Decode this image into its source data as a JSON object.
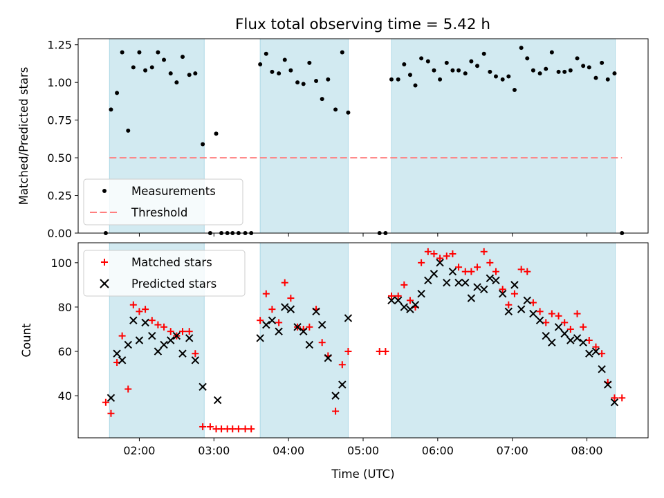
{
  "title": "Flux total observing time = 5.42 h",
  "chart_data": [
    {
      "type": "scatter",
      "ylabel": "Matched/Predicted stars",
      "xlabel": "",
      "xlim": [
        1.18,
        8.82
      ],
      "ylim": [
        0,
        1.29
      ],
      "yticks": [
        0,
        0.25,
        0.5,
        0.75,
        1.0,
        1.25
      ],
      "ytick_labels": [
        "0.00",
        "0.25",
        "0.50",
        "0.75",
        "1.00",
        "1.25"
      ],
      "shaded_intervals": [
        [
          1.6,
          2.87
        ],
        [
          3.62,
          4.8
        ],
        [
          5.38,
          8.38
        ]
      ],
      "threshold": {
        "name": "Threshold",
        "value": 0.5,
        "x_range": [
          1.6,
          8.47
        ],
        "color": "#ff7f7f"
      },
      "series": [
        {
          "name": "Measurements",
          "marker": "dot",
          "color": "#000000",
          "points": [
            [
              1.55,
              0.0
            ],
            [
              1.62,
              0.82
            ],
            [
              1.7,
              0.93
            ],
            [
              1.77,
              1.2
            ],
            [
              1.85,
              0.68
            ],
            [
              1.92,
              1.1
            ],
            [
              2.0,
              1.2
            ],
            [
              2.08,
              1.08
            ],
            [
              2.17,
              1.1
            ],
            [
              2.25,
              1.2
            ],
            [
              2.33,
              1.15
            ],
            [
              2.42,
              1.06
            ],
            [
              2.5,
              1.0
            ],
            [
              2.58,
              1.17
            ],
            [
              2.67,
              1.05
            ],
            [
              2.75,
              1.06
            ],
            [
              2.85,
              0.59
            ],
            [
              2.95,
              0.0
            ],
            [
              3.03,
              0.66
            ],
            [
              3.1,
              0.0
            ],
            [
              3.18,
              0.0
            ],
            [
              3.25,
              0.0
            ],
            [
              3.33,
              0.0
            ],
            [
              3.42,
              0.0
            ],
            [
              3.5,
              0.0
            ],
            [
              3.62,
              1.12
            ],
            [
              3.7,
              1.19
            ],
            [
              3.78,
              1.07
            ],
            [
              3.87,
              1.06
            ],
            [
              3.95,
              1.15
            ],
            [
              4.03,
              1.08
            ],
            [
              4.12,
              1.0
            ],
            [
              4.2,
              0.99
            ],
            [
              4.28,
              1.13
            ],
            [
              4.37,
              1.01
            ],
            [
              4.45,
              0.89
            ],
            [
              4.53,
              1.02
            ],
            [
              4.63,
              0.82
            ],
            [
              4.72,
              1.2
            ],
            [
              4.8,
              0.8
            ],
            [
              5.22,
              0.0
            ],
            [
              5.3,
              0.0
            ],
            [
              5.38,
              1.02
            ],
            [
              5.47,
              1.02
            ],
            [
              5.55,
              1.12
            ],
            [
              5.63,
              1.05
            ],
            [
              5.7,
              0.98
            ],
            [
              5.78,
              1.16
            ],
            [
              5.87,
              1.14
            ],
            [
              5.95,
              1.08
            ],
            [
              6.03,
              1.02
            ],
            [
              6.12,
              1.13
            ],
            [
              6.2,
              1.08
            ],
            [
              6.28,
              1.08
            ],
            [
              6.37,
              1.06
            ],
            [
              6.45,
              1.14
            ],
            [
              6.53,
              1.11
            ],
            [
              6.62,
              1.19
            ],
            [
              6.7,
              1.07
            ],
            [
              6.78,
              1.04
            ],
            [
              6.87,
              1.02
            ],
            [
              6.95,
              1.04
            ],
            [
              7.03,
              0.95
            ],
            [
              7.12,
              1.23
            ],
            [
              7.2,
              1.16
            ],
            [
              7.28,
              1.08
            ],
            [
              7.37,
              1.06
            ],
            [
              7.45,
              1.09
            ],
            [
              7.53,
              1.2
            ],
            [
              7.62,
              1.07
            ],
            [
              7.7,
              1.07
            ],
            [
              7.78,
              1.08
            ],
            [
              7.87,
              1.16
            ],
            [
              7.95,
              1.11
            ],
            [
              8.03,
              1.1
            ],
            [
              8.12,
              1.03
            ],
            [
              8.2,
              1.13
            ],
            [
              8.28,
              1.02
            ],
            [
              8.37,
              1.06
            ],
            [
              8.47,
              0.0
            ]
          ]
        }
      ],
      "legend": {
        "placement": "lower-left",
        "entries": [
          "Measurements",
          "Threshold"
        ]
      }
    },
    {
      "type": "scatter",
      "ylabel": "Count",
      "xlabel": "Time (UTC)",
      "xlim": [
        1.18,
        8.82
      ],
      "ylim": [
        21,
        109
      ],
      "yticks": [
        40,
        60,
        80,
        100
      ],
      "ytick_labels": [
        "40",
        "60",
        "80",
        "100"
      ],
      "xticks": [
        2,
        3,
        4,
        5,
        6,
        7,
        8
      ],
      "xtick_labels": [
        "02:00",
        "03:00",
        "04:00",
        "05:00",
        "06:00",
        "07:00",
        "08:00"
      ],
      "shaded_intervals": [
        [
          1.6,
          2.87
        ],
        [
          3.62,
          4.8
        ],
        [
          5.38,
          8.38
        ]
      ],
      "series": [
        {
          "name": "Matched stars",
          "marker": "plus",
          "color": "#ff0000",
          "points": [
            [
              1.55,
              37
            ],
            [
              1.62,
              32
            ],
            [
              1.7,
              55
            ],
            [
              1.77,
              67
            ],
            [
              1.85,
              43
            ],
            [
              1.92,
              81
            ],
            [
              2.0,
              78
            ],
            [
              2.08,
              79
            ],
            [
              2.17,
              74
            ],
            [
              2.25,
              72
            ],
            [
              2.33,
              71
            ],
            [
              2.42,
              69
            ],
            [
              2.5,
              67
            ],
            [
              2.58,
              69
            ],
            [
              2.67,
              69
            ],
            [
              2.75,
              59
            ],
            [
              2.85,
              26
            ],
            [
              2.95,
              26
            ],
            [
              3.03,
              25
            ],
            [
              3.1,
              25
            ],
            [
              3.18,
              25
            ],
            [
              3.25,
              25
            ],
            [
              3.33,
              25
            ],
            [
              3.42,
              25
            ],
            [
              3.5,
              25
            ],
            [
              3.62,
              74
            ],
            [
              3.7,
              86
            ],
            [
              3.78,
              79
            ],
            [
              3.87,
              73
            ],
            [
              3.95,
              91
            ],
            [
              4.03,
              84
            ],
            [
              4.12,
              71
            ],
            [
              4.2,
              70
            ],
            [
              4.28,
              71
            ],
            [
              4.37,
              79
            ],
            [
              4.45,
              64
            ],
            [
              4.53,
              58
            ],
            [
              4.63,
              33
            ],
            [
              4.72,
              54
            ],
            [
              4.8,
              60
            ],
            [
              5.22,
              60
            ],
            [
              5.3,
              60
            ],
            [
              5.38,
              85
            ],
            [
              5.47,
              85
            ],
            [
              5.55,
              90
            ],
            [
              5.63,
              83
            ],
            [
              5.7,
              80
            ],
            [
              5.78,
              100
            ],
            [
              5.87,
              105
            ],
            [
              5.95,
              104
            ],
            [
              6.03,
              102
            ],
            [
              6.12,
              103
            ],
            [
              6.2,
              104
            ],
            [
              6.28,
              98
            ],
            [
              6.37,
              96
            ],
            [
              6.45,
              96
            ],
            [
              6.53,
              98
            ],
            [
              6.62,
              105
            ],
            [
              6.7,
              100
            ],
            [
              6.78,
              96
            ],
            [
              6.87,
              88
            ],
            [
              6.95,
              81
            ],
            [
              7.03,
              86
            ],
            [
              7.12,
              97
            ],
            [
              7.2,
              96
            ],
            [
              7.28,
              82
            ],
            [
              7.37,
              78
            ],
            [
              7.45,
              73
            ],
            [
              7.53,
              77
            ],
            [
              7.62,
              76
            ],
            [
              7.7,
              73
            ],
            [
              7.78,
              70
            ],
            [
              7.87,
              77
            ],
            [
              7.95,
              71
            ],
            [
              8.03,
              65
            ],
            [
              8.12,
              62
            ],
            [
              8.2,
              59
            ],
            [
              8.28,
              46
            ],
            [
              8.37,
              39
            ],
            [
              8.47,
              39
            ]
          ]
        },
        {
          "name": "Predicted stars",
          "marker": "x",
          "color": "#000000",
          "points": [
            [
              1.62,
              39
            ],
            [
              1.7,
              59
            ],
            [
              1.77,
              56
            ],
            [
              1.85,
              63
            ],
            [
              1.92,
              74
            ],
            [
              2.0,
              65
            ],
            [
              2.08,
              73
            ],
            [
              2.17,
              67
            ],
            [
              2.25,
              60
            ],
            [
              2.33,
              63
            ],
            [
              2.42,
              65
            ],
            [
              2.5,
              67
            ],
            [
              2.58,
              59
            ],
            [
              2.67,
              66
            ],
            [
              2.75,
              56
            ],
            [
              2.85,
              44
            ],
            [
              3.05,
              38
            ],
            [
              3.62,
              66
            ],
            [
              3.7,
              72
            ],
            [
              3.78,
              74
            ],
            [
              3.87,
              69
            ],
            [
              3.95,
              80
            ],
            [
              4.03,
              79
            ],
            [
              4.12,
              71
            ],
            [
              4.2,
              69
            ],
            [
              4.28,
              63
            ],
            [
              4.37,
              78
            ],
            [
              4.45,
              72
            ],
            [
              4.53,
              57
            ],
            [
              4.63,
              40
            ],
            [
              4.72,
              45
            ],
            [
              4.8,
              75
            ],
            [
              5.38,
              83
            ],
            [
              5.47,
              83
            ],
            [
              5.55,
              80
            ],
            [
              5.63,
              79
            ],
            [
              5.7,
              81
            ],
            [
              5.78,
              86
            ],
            [
              5.87,
              92
            ],
            [
              5.95,
              95
            ],
            [
              6.03,
              100
            ],
            [
              6.12,
              91
            ],
            [
              6.2,
              96
            ],
            [
              6.28,
              91
            ],
            [
              6.37,
              91
            ],
            [
              6.45,
              84
            ],
            [
              6.53,
              89
            ],
            [
              6.62,
              88
            ],
            [
              6.7,
              93
            ],
            [
              6.78,
              92
            ],
            [
              6.87,
              86
            ],
            [
              6.95,
              78
            ],
            [
              7.03,
              90
            ],
            [
              7.12,
              79
            ],
            [
              7.2,
              83
            ],
            [
              7.28,
              77
            ],
            [
              7.37,
              74
            ],
            [
              7.45,
              67
            ],
            [
              7.53,
              64
            ],
            [
              7.62,
              71
            ],
            [
              7.7,
              68
            ],
            [
              7.78,
              65
            ],
            [
              7.87,
              66
            ],
            [
              7.95,
              64
            ],
            [
              8.03,
              59
            ],
            [
              8.12,
              60
            ],
            [
              8.2,
              52
            ],
            [
              8.28,
              45
            ],
            [
              8.37,
              37
            ]
          ]
        }
      ],
      "legend": {
        "placement": "upper-left",
        "entries": [
          "Matched stars",
          "Predicted stars"
        ]
      }
    }
  ],
  "colors": {
    "shade": "#add8e6",
    "matched": "#ff0000",
    "predicted": "#000000",
    "threshold": "#ff7f7f"
  }
}
